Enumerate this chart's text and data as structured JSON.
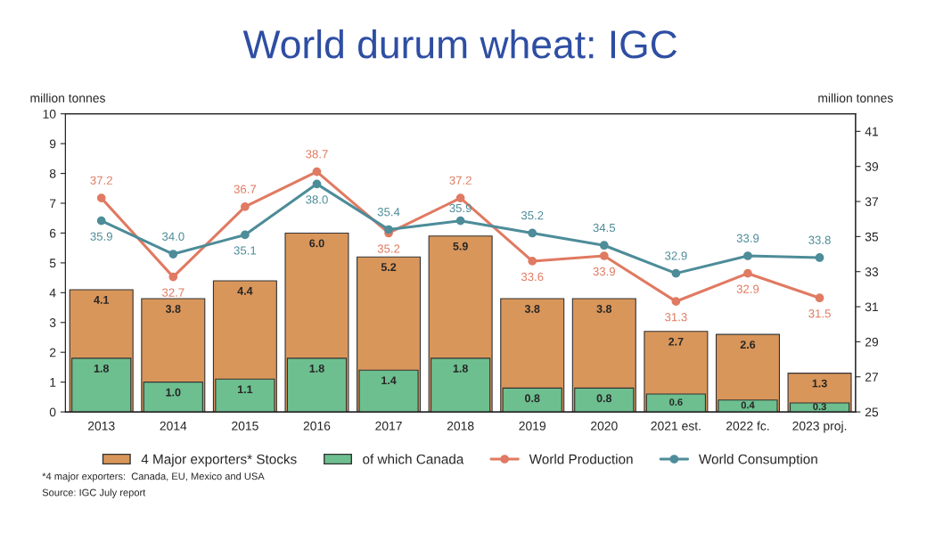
{
  "chart_data": {
    "type": "bar",
    "title": "World durum wheat: IGC",
    "ylabel": "million tonnes",
    "y2label": "million tonnes",
    "categories": [
      "2013",
      "2014",
      "2015",
      "2016",
      "2017",
      "2018",
      "2019",
      "2020",
      "2021 est.",
      "2022 fc.",
      "2023 proj."
    ],
    "series": [
      {
        "name": "4 Major exporters* Stocks",
        "color": "#d9965a",
        "values": [
          4.1,
          3.8,
          4.4,
          6.0,
          5.2,
          5.9,
          3.8,
          3.8,
          2.7,
          2.6,
          1.3
        ],
        "value_labels": [
          "4.1",
          "3.8",
          "4.4",
          "6.0",
          "5.2",
          "5.9",
          "3.8",
          "3.8",
          "2.7",
          "2.6",
          "1.3"
        ]
      },
      {
        "name": "of which Canada",
        "color": "#6dbf8f",
        "values": [
          1.8,
          1.0,
          1.1,
          1.8,
          1.4,
          1.8,
          0.8,
          0.8,
          0.6,
          0.4,
          0.3
        ],
        "value_labels": [
          "1.8",
          "1.0",
          "1.1",
          "1.8",
          "1.4",
          "1.8",
          "0.8",
          "0.8",
          "0.6",
          "0.4",
          "0.3"
        ]
      },
      {
        "name": "World Production",
        "type": "line",
        "axis": "y2",
        "color": "#e07a62",
        "values": [
          37.2,
          32.7,
          36.7,
          38.7,
          35.2,
          37.2,
          33.6,
          33.9,
          31.3,
          32.9,
          31.5
        ],
        "value_labels": [
          "37.2",
          "32.7",
          "36.7",
          "38.7",
          "35.2",
          "37.2",
          "33.6",
          "33.9",
          "31.3",
          "32.9",
          "31.5"
        ]
      },
      {
        "name": "World Consumption",
        "type": "line",
        "axis": "y2",
        "color": "#4d8c99",
        "values": [
          35.9,
          34.0,
          35.1,
          38.0,
          35.4,
          35.9,
          35.2,
          34.5,
          32.9,
          33.9,
          33.8
        ],
        "value_labels": [
          "35.9",
          "34.0",
          "35.1",
          "38.0",
          "35.4",
          "35.9",
          "35.2",
          "34.5",
          "32.9",
          "33.9",
          "33.8"
        ]
      }
    ],
    "ylim": [
      0,
      10
    ],
    "yticks": [
      0,
      1,
      2,
      3,
      4,
      5,
      6,
      7,
      8,
      9,
      10
    ],
    "y2lim": [
      25,
      42
    ],
    "y2ticks": [
      25,
      27,
      29,
      31,
      33,
      35,
      37,
      39,
      41
    ],
    "marker": "circle",
    "legend": "bottom",
    "grid": false,
    "annotations": [
      "*4 major exporters:  Canada, EU, Mexico and USA",
      "Source: IGC July report"
    ]
  }
}
